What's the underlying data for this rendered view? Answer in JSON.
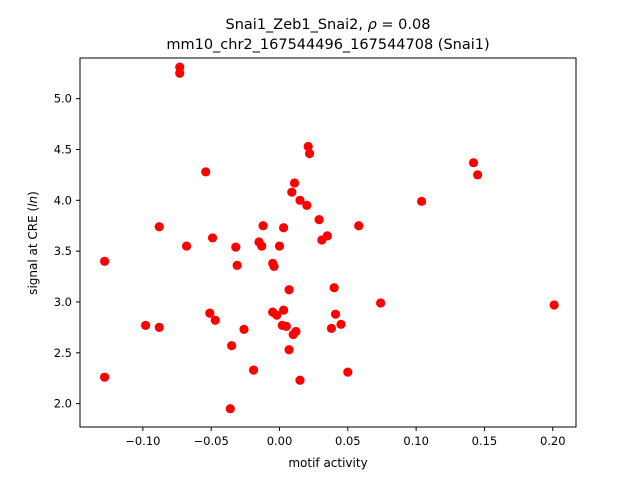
{
  "chart_data": {
    "type": "scatter",
    "title_line1_prefix": "Snai1_Zeb1_Snai2, ",
    "title_line1_rho": "ρ",
    "title_line1_suffix": " = 0.08",
    "title_line2": "mm10_chr2_167544496_167544708 (Snai1)",
    "xlabel": "motif activity",
    "ylabel_prefix": "signal at CRE (",
    "ylabel_italic": "ln",
    "ylabel_suffix": ")",
    "xlim": [
      -0.146,
      0.217
    ],
    "ylim": [
      1.77,
      5.4
    ],
    "xticks": [
      {
        "value": -0.1,
        "label": "−0.10"
      },
      {
        "value": -0.05,
        "label": "−0.05"
      },
      {
        "value": 0.0,
        "label": "0.00"
      },
      {
        "value": 0.05,
        "label": "0.05"
      },
      {
        "value": 0.1,
        "label": "0.10"
      },
      {
        "value": 0.15,
        "label": "0.15"
      },
      {
        "value": 0.2,
        "label": "0.20"
      }
    ],
    "yticks": [
      {
        "value": 2.0,
        "label": "2.0"
      },
      {
        "value": 2.5,
        "label": "2.5"
      },
      {
        "value": 3.0,
        "label": "3.0"
      },
      {
        "value": 3.5,
        "label": "3.5"
      },
      {
        "value": 4.0,
        "label": "4.0"
      },
      {
        "value": 4.5,
        "label": "4.5"
      },
      {
        "value": 5.0,
        "label": "5.0"
      }
    ],
    "marker_color": "#ff0000",
    "points": [
      {
        "x": -0.073,
        "y": 5.31
      },
      {
        "x": -0.073,
        "y": 5.25
      },
      {
        "x": 0.021,
        "y": 4.53
      },
      {
        "x": 0.022,
        "y": 4.46
      },
      {
        "x": 0.142,
        "y": 4.37
      },
      {
        "x": -0.054,
        "y": 4.28
      },
      {
        "x": 0.145,
        "y": 4.25
      },
      {
        "x": 0.011,
        "y": 4.17
      },
      {
        "x": 0.009,
        "y": 4.08
      },
      {
        "x": 0.015,
        "y": 4.0
      },
      {
        "x": 0.104,
        "y": 3.99
      },
      {
        "x": 0.02,
        "y": 3.95
      },
      {
        "x": 0.029,
        "y": 3.81
      },
      {
        "x": -0.012,
        "y": 3.75
      },
      {
        "x": 0.058,
        "y": 3.75
      },
      {
        "x": -0.088,
        "y": 3.74
      },
      {
        "x": 0.003,
        "y": 3.73
      },
      {
        "x": 0.035,
        "y": 3.65
      },
      {
        "x": -0.049,
        "y": 3.63
      },
      {
        "x": 0.031,
        "y": 3.61
      },
      {
        "x": -0.015,
        "y": 3.59
      },
      {
        "x": -0.013,
        "y": 3.55
      },
      {
        "x": -0.068,
        "y": 3.55
      },
      {
        "x": 0.0,
        "y": 3.55
      },
      {
        "x": -0.032,
        "y": 3.54
      },
      {
        "x": -0.128,
        "y": 3.4
      },
      {
        "x": -0.005,
        "y": 3.38
      },
      {
        "x": -0.031,
        "y": 3.36
      },
      {
        "x": -0.004,
        "y": 3.35
      },
      {
        "x": 0.04,
        "y": 3.14
      },
      {
        "x": 0.007,
        "y": 3.12
      },
      {
        "x": 0.074,
        "y": 2.99
      },
      {
        "x": 0.201,
        "y": 2.97
      },
      {
        "x": 0.003,
        "y": 2.92
      },
      {
        "x": -0.005,
        "y": 2.9
      },
      {
        "x": -0.051,
        "y": 2.89
      },
      {
        "x": 0.041,
        "y": 2.88
      },
      {
        "x": -0.002,
        "y": 2.87
      },
      {
        "x": -0.047,
        "y": 2.82
      },
      {
        "x": 0.045,
        "y": 2.78
      },
      {
        "x": -0.098,
        "y": 2.77
      },
      {
        "x": 0.002,
        "y": 2.77
      },
      {
        "x": 0.005,
        "y": 2.76
      },
      {
        "x": -0.088,
        "y": 2.75
      },
      {
        "x": 0.038,
        "y": 2.74
      },
      {
        "x": -0.026,
        "y": 2.73
      },
      {
        "x": 0.012,
        "y": 2.71
      },
      {
        "x": 0.01,
        "y": 2.68
      },
      {
        "x": -0.035,
        "y": 2.57
      },
      {
        "x": 0.007,
        "y": 2.53
      },
      {
        "x": -0.019,
        "y": 2.33
      },
      {
        "x": 0.05,
        "y": 2.31
      },
      {
        "x": -0.128,
        "y": 2.26
      },
      {
        "x": 0.015,
        "y": 2.23
      },
      {
        "x": -0.036,
        "y": 1.95
      }
    ]
  }
}
